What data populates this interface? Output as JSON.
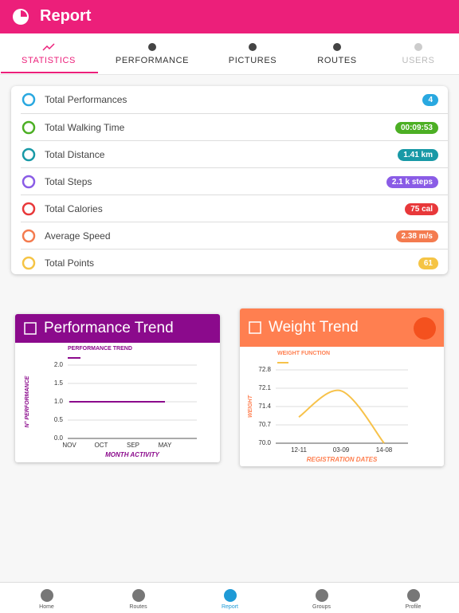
{
  "header": {
    "title": "Report"
  },
  "tabs": [
    "STATISTICS",
    "PERFORMANCE",
    "PICTURES",
    "ROUTES",
    "USERS"
  ],
  "stats": [
    {
      "label": "Total Performances",
      "value": "4",
      "color": "#29a8e0"
    },
    {
      "label": "Total Walking Time",
      "value": "00:09:53",
      "color": "#4caf24"
    },
    {
      "label": "Total Distance",
      "value": "1.41 km",
      "color": "#1899a6"
    },
    {
      "label": "Total Steps",
      "value": "2.1 k steps",
      "color": "#8a5ce6"
    },
    {
      "label": "Total Calories",
      "value": "75 cal",
      "color": "#e8383a"
    },
    {
      "label": "Average Speed",
      "value": "2.38 m/s",
      "color": "#f47b4f"
    },
    {
      "label": "Total Points",
      "value": "61",
      "color": "#f5c445"
    }
  ],
  "chart_data": [
    {
      "type": "line",
      "title": "Performance Trend",
      "header_color": "#8b0a8c",
      "ylabel": "N° PERFORMANCE",
      "xlabel": "MONTH ACTIVITY",
      "categories": [
        "NOV",
        "OCT",
        "SEP",
        "MAY"
      ],
      "series": [
        {
          "name": "PERFORMANCE TREND",
          "color": "#8b0a8c",
          "values": [
            1,
            1,
            1,
            1
          ]
        }
      ],
      "ylim": [
        0,
        2
      ],
      "yticks": [
        {
          "value": 0,
          "label": "0.0"
        },
        {
          "value": 0.5,
          "label": "0.5"
        },
        {
          "value": 1,
          "label": "1.0"
        },
        {
          "value": 1.5,
          "label": "1.5"
        },
        {
          "value": 2,
          "label": "2.0"
        }
      ],
      "grid": true
    },
    {
      "type": "line",
      "title": "Weight Trend",
      "header_color": "#ff7f50",
      "ylabel": "WEIGHT",
      "xlabel": "REGISTRATION DATES",
      "categories": [
        "12-11",
        "03-09",
        "14-08"
      ],
      "series": [
        {
          "name": "WEIGHT FUNCTION",
          "color": "#f7c24a",
          "values": [
            71.0,
            72.0,
            70.0
          ]
        }
      ],
      "ylim": [
        70.0,
        72.8
      ],
      "yticks": [
        {
          "value": 70.0,
          "label": "70.0"
        },
        {
          "value": 70.7,
          "label": "70.7"
        },
        {
          "value": 71.4,
          "label": "71.4"
        },
        {
          "value": 72.1,
          "label": "72.1"
        },
        72.8
      ],
      "grid": true,
      "smooth": true
    }
  ],
  "nav": [
    "Home",
    "Routes",
    "Report",
    "Groups",
    "Profile"
  ]
}
